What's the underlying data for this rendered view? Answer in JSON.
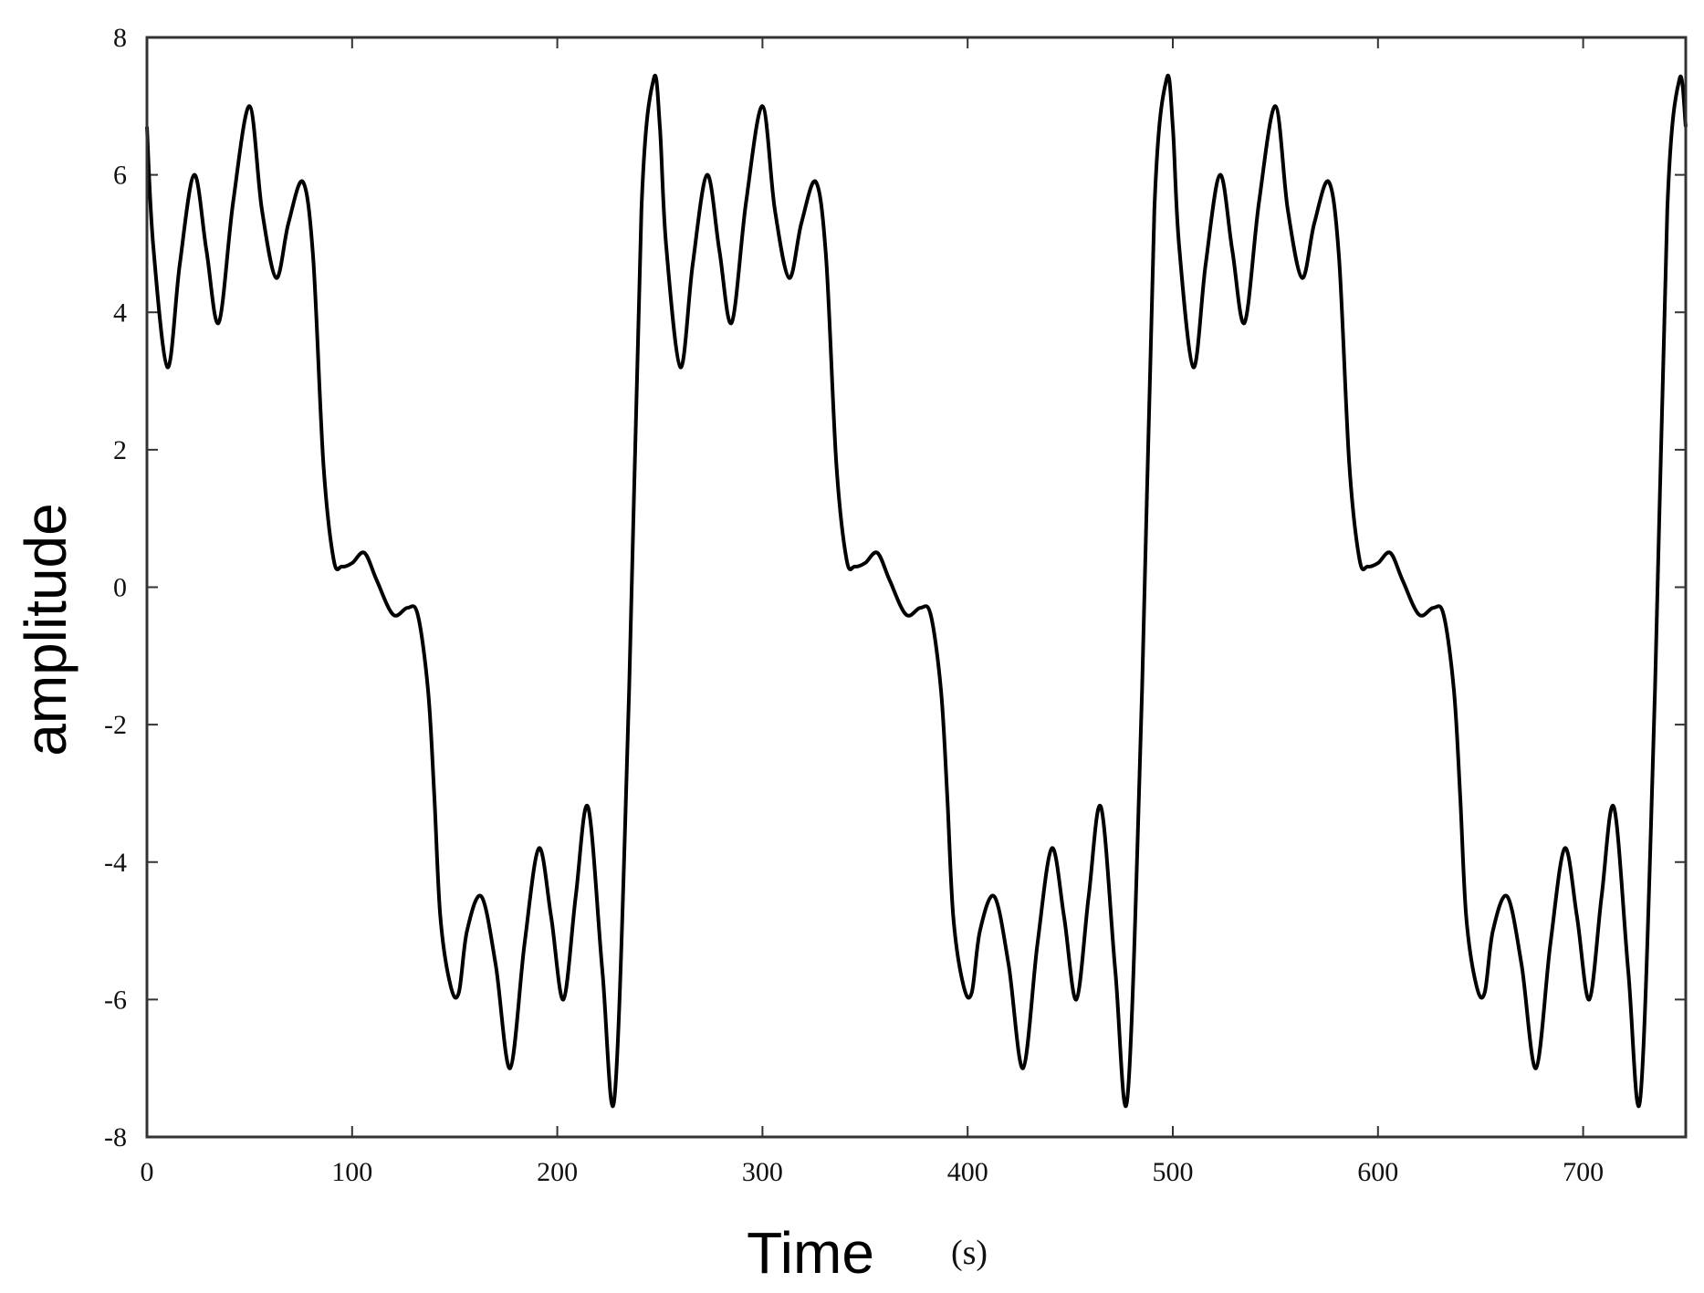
{
  "chart_data": {
    "type": "line",
    "title": "",
    "xlabel": "Time",
    "xunit": "(s)",
    "ylabel": "amplitude",
    "xlim": [
      0,
      750
    ],
    "ylim": [
      -8,
      8
    ],
    "xticks": [
      0,
      100,
      200,
      300,
      400,
      500,
      600,
      700
    ],
    "yticks": [
      8,
      6,
      4,
      2,
      0,
      -2,
      -4,
      -6,
      -8
    ],
    "grid": false,
    "legend": "none",
    "line_color": "#000000",
    "series": [
      {
        "period": 250,
        "x": [
          0,
          3,
          10,
          16,
          23,
          29,
          35,
          42,
          50,
          56,
          63,
          69,
          76,
          81,
          86,
          91,
          95,
          100,
          106,
          112,
          120,
          127,
          132,
          137,
          140,
          143,
          148,
          152,
          156,
          163,
          170,
          177,
          184,
          191,
          197,
          203,
          209,
          215,
          222,
          228,
          235,
          241,
          247,
          250
        ],
        "y": [
          6.7,
          5.0,
          3.2,
          4.7,
          6.0,
          4.9,
          3.85,
          5.6,
          7.0,
          5.5,
          4.5,
          5.3,
          5.9,
          4.8,
          1.8,
          0.4,
          0.3,
          0.35,
          0.5,
          0.1,
          -0.4,
          -0.3,
          -0.4,
          -1.5,
          -3.0,
          -4.8,
          -5.8,
          -5.9,
          -5.0,
          -4.5,
          -5.5,
          -7.0,
          -5.2,
          -3.8,
          -4.8,
          -6.0,
          -4.5,
          -3.2,
          -5.6,
          -7.4,
          -1.5,
          5.5,
          7.4,
          6.7
        ]
      }
    ]
  }
}
